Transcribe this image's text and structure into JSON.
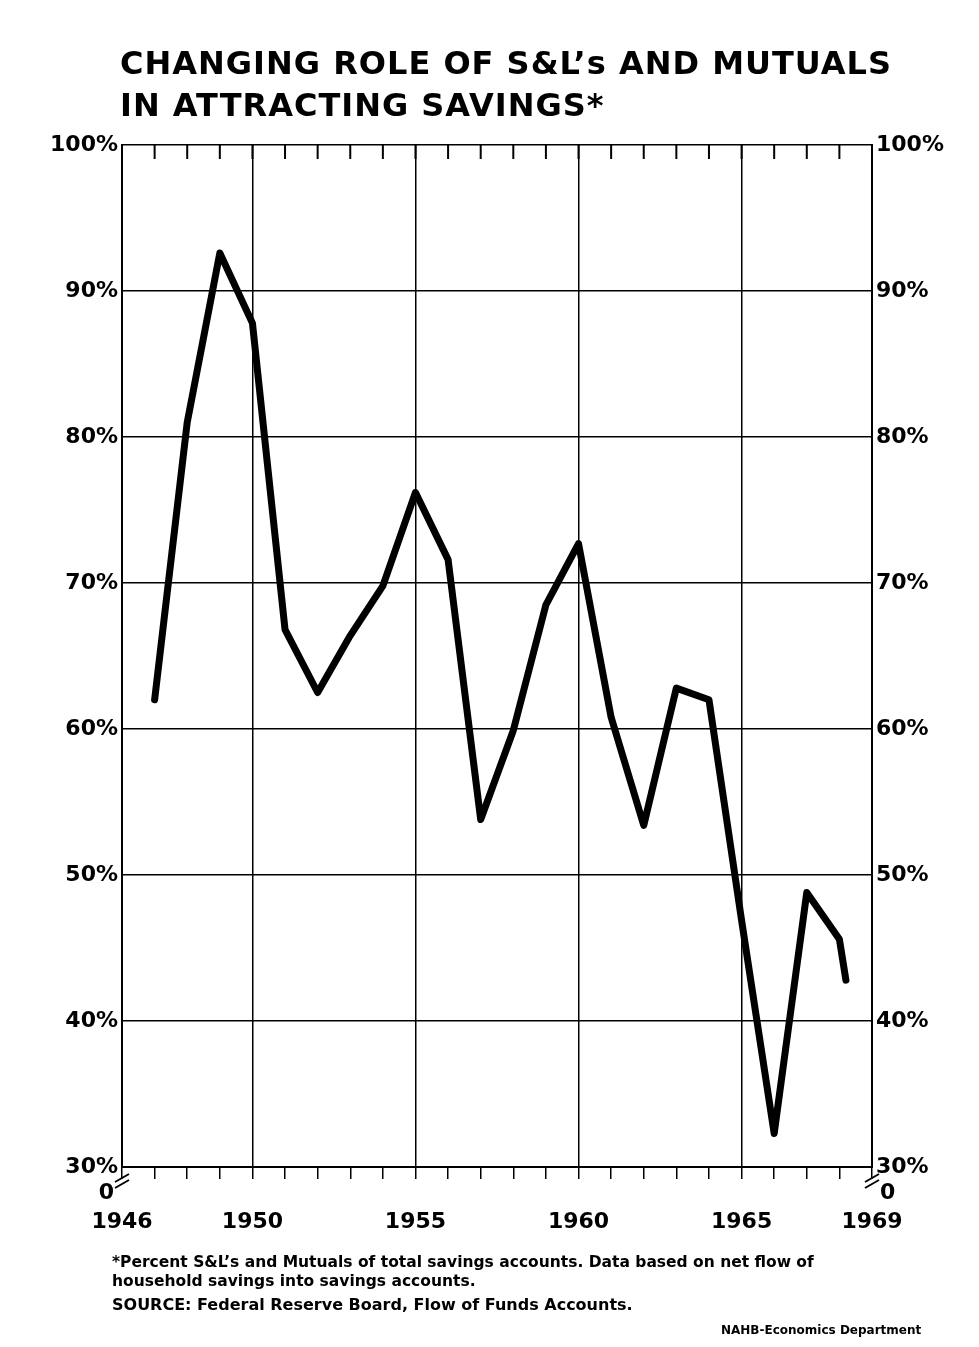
{
  "chart_data": {
    "type": "line",
    "title": "CHANGING ROLE OF S&L’s AND MUTUALS IN ATTRACTING SAVINGS*",
    "x": [
      1947,
      1948,
      1949,
      1950,
      1951,
      1952,
      1953,
      1954,
      1955,
      1956,
      1957,
      1958,
      1959,
      1960,
      1961,
      1962,
      1963,
      1964,
      1965,
      1966,
      1967,
      1968,
      1968.2
    ],
    "series": [
      {
        "color": "#000000",
        "values": [
          62,
          81,
          92.6,
          87.8,
          66.8,
          62.5,
          66.4,
          69.8,
          76.2,
          71.6,
          53.8,
          59.9,
          68.5,
          72.7,
          60.8,
          53.4,
          62.8,
          62,
          46.9,
          32.3,
          48.8,
          45.6,
          42.8
        ]
      }
    ],
    "xlim": [
      1946,
      1969
    ],
    "xticks": [
      1946,
      {
        "value": 1947,
        "label": null
      },
      {
        "value": 1948,
        "label": null
      },
      {
        "value": 1949,
        "label": null
      },
      1950,
      {
        "value": 1951,
        "label": null
      },
      {
        "value": 1952,
        "label": null
      },
      {
        "value": 1953,
        "label": null
      },
      {
        "value": 1954,
        "label": null
      },
      1955,
      {
        "value": 1956,
        "label": null
      },
      {
        "value": 1957,
        "label": null
      },
      {
        "value": 1958,
        "label": null
      },
      {
        "value": 1959,
        "label": null
      },
      1960,
      {
        "value": 1961,
        "label": null
      },
      {
        "value": 1962,
        "label": null
      },
      {
        "value": 1963,
        "label": null
      },
      {
        "value": 1964,
        "label": null
      },
      1965,
      {
        "value": 1966,
        "label": null
      },
      {
        "value": 1967,
        "label": null
      },
      {
        "value": 1968,
        "label": null
      },
      1969
    ],
    "ylim": [
      30,
      100
    ],
    "yticks": [
      {
        "value": 30,
        "label": "30%"
      },
      {
        "value": 40,
        "label": "40%"
      },
      {
        "value": 50,
        "label": "50%"
      },
      {
        "value": 60,
        "label": "60%"
      },
      {
        "value": 70,
        "label": "70%"
      },
      {
        "value": 80,
        "label": "80%"
      },
      {
        "value": 90,
        "label": "90%"
      },
      {
        "value": 100,
        "label": "100%"
      }
    ],
    "y2lim": [
      30,
      100
    ],
    "y2ticks": [
      {
        "value": 30,
        "label": "30%"
      },
      {
        "value": 40,
        "label": "40%"
      },
      {
        "value": 50,
        "label": "50%"
      },
      {
        "value": 60,
        "label": "60%"
      },
      {
        "value": 70,
        "label": "70%"
      },
      {
        "value": 80,
        "label": "80%"
      },
      {
        "value": 90,
        "label": "90%"
      },
      {
        "value": 100,
        "label": "100%"
      }
    ],
    "grid": true,
    "legend": false,
    "marker": "none",
    "line_style": "solid",
    "annotations": [
      "0",
      "0",
      "*Percent S&L’s and Mutuals of total savings accounts. Data based on net flow of household savings into savings accounts.",
      "SOURCE: Federal Reserve Board, Flow of Funds Accounts.",
      "NAHB-Economics Department"
    ]
  }
}
